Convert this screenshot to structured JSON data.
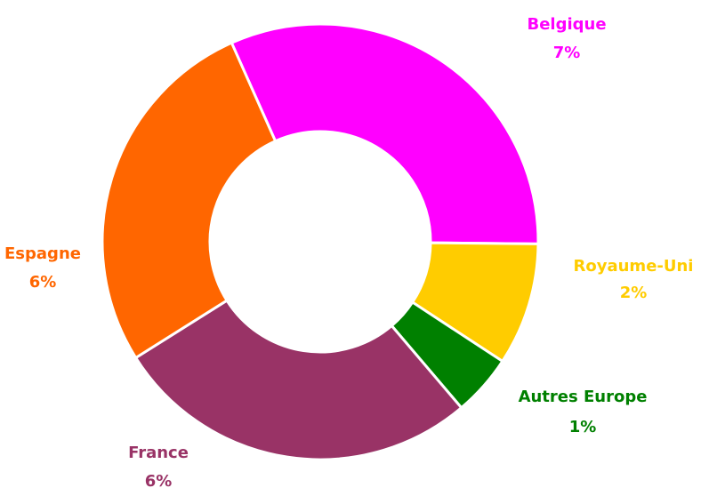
{
  "chart_data": {
    "type": "donut",
    "categories": [
      "Belgique",
      "Royaume-Uni",
      "Autres Europe",
      "France",
      "Espagne"
    ],
    "values": [
      7,
      2,
      1,
      6,
      6
    ],
    "value_labels": [
      "7%",
      "2%",
      "1%",
      "6%",
      "6%"
    ],
    "colors": [
      "#ff00ff",
      "#ffcc00",
      "#008000",
      "#993366",
      "#ff6600"
    ]
  }
}
